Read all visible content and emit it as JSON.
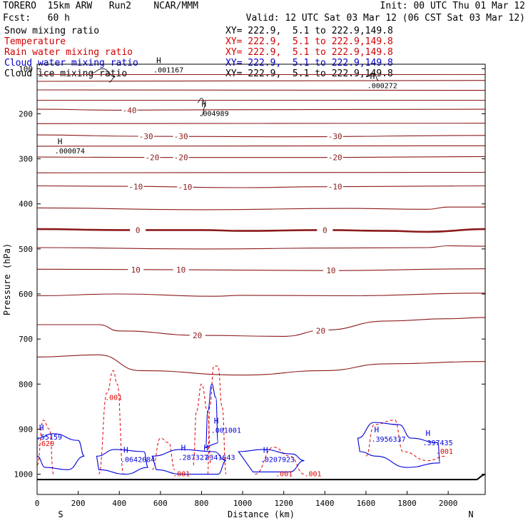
{
  "header": {
    "model": "TORERO  15km ARW   Run2    NCAR/MMM",
    "forecast": "Fcst:   60 h",
    "init": "Init: 00 UTC Thu 01 Mar 12",
    "valid": "Valid: 12 UTC Sat 03 Mar 12 (06 CST Sat 03 Mar 12)"
  },
  "legend": [
    {
      "label": "Snow mixing ratio",
      "xy": "XY= 222.9,  5.1 to 222.9,149.8",
      "label_color": "#000000",
      "xy_color": "#000000"
    },
    {
      "label": "Temperature",
      "xy": "XY= 222.9,  5.1 to 222.9,149.8",
      "label_color": "#d00000",
      "xy_color": "#d00000"
    },
    {
      "label": "Rain water mixing ratio",
      "xy": "XY= 222.9,  5.1 to 222.9,149.8",
      "label_color": "#d00000",
      "xy_color": "#d00000"
    },
    {
      "label": "Cloud water mixing ratio",
      "xy": "XY= 222.9,  5.1 to 222.9,149.8",
      "label_color": "#0000cc",
      "xy_color": "#0000cc"
    },
    {
      "label": "Cloud ice mixing ratio",
      "xy": "XY= 222.9,  5.1 to 222.9,149.8",
      "label_color": "#000000",
      "xy_color": "#000000"
    }
  ],
  "colors": {
    "temperature": "#8b1a1a",
    "rain": "#e00000",
    "cloud_water": "#0000dd",
    "snow": "#000000",
    "axis": "#000000"
  },
  "chart_data": {
    "type": "line",
    "xlabel": "Distance (km)",
    "ylabel": "Pressure (hPa)",
    "x_ticks": [
      0,
      200,
      400,
      600,
      800,
      1000,
      1200,
      1400,
      1600,
      1800,
      2000
    ],
    "y_ticks": [
      100,
      200,
      300,
      400,
      500,
      600,
      700,
      800,
      900,
      1000
    ],
    "xlim": [
      0,
      2180
    ],
    "ylim": [
      1045,
      90
    ],
    "y_scale": "linear-inverted",
    "x_end_labels": {
      "left": "S",
      "right": "N"
    },
    "temperature_contours": [
      {
        "level": -60,
        "points": [
          [
            0,
            113
          ],
          [
            2180,
            113
          ]
        ]
      },
      {
        "level": -55,
        "points": [
          [
            0,
            128
          ],
          [
            2180,
            126
          ]
        ]
      },
      {
        "level": -50,
        "points": [
          [
            0,
            147
          ],
          [
            2180,
            148
          ]
        ]
      },
      {
        "level": -45,
        "points": [
          [
            0,
            170
          ],
          [
            2180,
            170
          ]
        ]
      },
      {
        "level": -40,
        "points": [
          [
            0,
            190
          ],
          [
            400,
            192
          ],
          [
            900,
            191
          ],
          [
            2180,
            190
          ]
        ]
      },
      {
        "level": -35,
        "points": [
          [
            0,
            222
          ],
          [
            2180,
            221
          ]
        ]
      },
      {
        "level": -30,
        "points": [
          [
            0,
            247
          ],
          [
            500,
            250
          ],
          [
            1200,
            251
          ],
          [
            2180,
            248
          ]
        ]
      },
      {
        "level": -25,
        "points": [
          [
            0,
            272
          ],
          [
            2180,
            271
          ]
        ]
      },
      {
        "level": -20,
        "points": [
          [
            0,
            296
          ],
          [
            600,
            297
          ],
          [
            1400,
            297
          ],
          [
            2180,
            295
          ]
        ]
      },
      {
        "level": -15,
        "points": [
          [
            0,
            331
          ],
          [
            2180,
            330
          ]
        ]
      },
      {
        "level": -10,
        "points": [
          [
            0,
            360
          ],
          [
            400,
            361
          ],
          [
            1000,
            364
          ],
          [
            1400,
            362
          ],
          [
            2180,
            360
          ]
        ]
      },
      {
        "level": -5,
        "points": [
          [
            0,
            409
          ],
          [
            800,
            413
          ],
          [
            1500,
            410
          ],
          [
            1900,
            412
          ],
          [
            2000,
            407
          ],
          [
            2180,
            407
          ]
        ]
      },
      {
        "level": 0,
        "points": [
          [
            0,
            456
          ],
          [
            400,
            458
          ],
          [
            800,
            458
          ],
          [
            1000,
            460
          ],
          [
            1400,
            458
          ],
          [
            1700,
            460
          ],
          [
            1900,
            462
          ],
          [
            2180,
            456
          ]
        ]
      },
      {
        "level": 5,
        "points": [
          [
            0,
            497
          ],
          [
            800,
            500
          ],
          [
            1500,
            498
          ],
          [
            1900,
            497
          ],
          [
            2000,
            493
          ],
          [
            2180,
            494
          ]
        ]
      },
      {
        "level": 10,
        "points": [
          [
            0,
            545
          ],
          [
            600,
            546
          ],
          [
            1400,
            548
          ],
          [
            2180,
            544
          ]
        ]
      },
      {
        "level": 15,
        "points": [
          [
            0,
            604
          ],
          [
            400,
            600
          ],
          [
            860,
            605
          ],
          [
            1000,
            603
          ],
          [
            1500,
            604
          ],
          [
            2180,
            598
          ]
        ]
      },
      {
        "level": 20,
        "points": [
          [
            0,
            668
          ],
          [
            300,
            668
          ],
          [
            400,
            682
          ],
          [
            800,
            692
          ],
          [
            1200,
            694
          ],
          [
            1400,
            680
          ],
          [
            1700,
            660
          ],
          [
            2000,
            655
          ],
          [
            2180,
            652
          ]
        ]
      },
      {
        "level": 25,
        "points": [
          [
            0,
            740
          ],
          [
            300,
            735
          ],
          [
            500,
            770
          ],
          [
            1000,
            780
          ],
          [
            1400,
            770
          ],
          [
            1700,
            755
          ],
          [
            2180,
            750
          ]
        ]
      }
    ],
    "temperature_labels": [
      "-40",
      "-30",
      "-30",
      "-30",
      "-20",
      "-20",
      "-20",
      "-10",
      "-10",
      "-10",
      "0",
      "0",
      "10",
      "10",
      "10",
      "20",
      "20"
    ],
    "extremum_labels": [
      {
        "mark": "H",
        "value": ".001167",
        "x": 580,
        "p": 100
      },
      {
        "mark": "H",
        "value": ".004989",
        "x": 800,
        "p": 197
      },
      {
        "mark": "H",
        "value": ".000074",
        "x": 100,
        "p": 280
      },
      {
        "mark": "H",
        "value": ".000272",
        "x": 1620,
        "p": 135
      },
      {
        "mark": "H",
        "value": ".55159",
        "x": 10,
        "p": 915
      },
      {
        "mark": "H",
        "value": ".001001",
        "x": 860,
        "p": 900
      },
      {
        "mark": "H",
        "value": ".397435",
        "x": 1890,
        "p": 928
      },
      {
        "mark": "H",
        "value": ".3956337",
        "x": 1640,
        "p": 920
      },
      {
        "mark": "H",
        "value": ".0642684",
        "x": 420,
        "p": 965
      },
      {
        "mark": "H",
        "value": ".287327",
        "x": 700,
        "p": 960
      },
      {
        "mark": "H",
        "value": ".2341643",
        "x": 810,
        "p": 960
      },
      {
        "mark": "H",
        "value": ".0207923",
        "x": 1100,
        "p": 965
      }
    ],
    "rain_labels": [
      ".001",
      ".001",
      ".001",
      ".001",
      ".001",
      ".620"
    ]
  }
}
